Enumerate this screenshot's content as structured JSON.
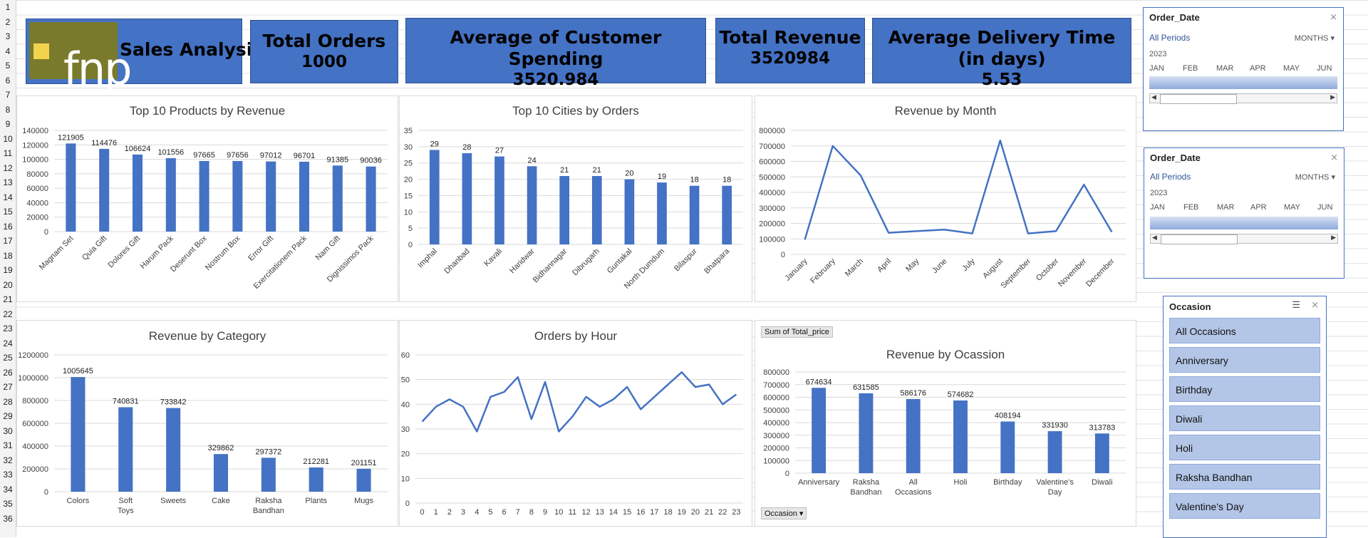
{
  "row_numbers": [
    "1",
    "2",
    "3",
    "4",
    "5",
    "6",
    "7",
    "8",
    "9",
    "10",
    "11",
    "12",
    "13",
    "14",
    "15",
    "16",
    "17",
    "18",
    "19",
    "20",
    "21",
    "22",
    "23",
    "24",
    "25",
    "26",
    "27",
    "28",
    "29",
    "30",
    "31",
    "32",
    "33",
    "34",
    "35",
    "36"
  ],
  "header": {
    "logo_text": "fnp",
    "title": "Sales Analysis",
    "kpis": [
      {
        "label": "Total Orders",
        "value": "1000"
      },
      {
        "label": "Average of Customer Spending",
        "value": "3520.984"
      },
      {
        "label": "Total Revenue",
        "value": "3520984"
      },
      {
        "label": "Average Delivery Time (in days)",
        "value": "5.53"
      }
    ]
  },
  "slicers": {
    "date1": {
      "title": "Order_Date",
      "period": "All Periods",
      "level": "MONTHS",
      "year": "2023",
      "months": [
        "JAN",
        "FEB",
        "MAR",
        "APR",
        "MAY",
        "JUN"
      ]
    },
    "date2": {
      "title": "Order_Date",
      "period": "All Periods",
      "level": "MONTHS",
      "year": "2023",
      "months": [
        "JAN",
        "FEB",
        "MAR",
        "APR",
        "MAY",
        "JUN"
      ]
    },
    "occasion": {
      "title": "Occasion",
      "items": [
        "All Occasions",
        "Anniversary",
        "Birthday",
        "Diwali",
        "Holi",
        "Raksha Bandhan",
        "Valentine's Day"
      ]
    }
  },
  "pivot_labels": {
    "field": "Sum of Total_price",
    "filter": "Occasion"
  },
  "chart_data": [
    {
      "type": "bar",
      "title": "Top 10 Products by Revenue",
      "categories": [
        "Magnam Set",
        "Quia Gift",
        "Dolores Gift",
        "Harum Pack",
        "Deserunt Box",
        "Nostrum Box",
        "Error Gift",
        "Exercitationem Pack",
        "Nam Gift",
        "Dignissimos Pack"
      ],
      "values": [
        121905,
        114476,
        106624,
        101556,
        97665,
        97656,
        97012,
        96701,
        91385,
        90036
      ],
      "yticks": [
        0,
        20000,
        40000,
        60000,
        80000,
        100000,
        120000,
        140000
      ],
      "ylim": [
        0,
        140000
      ],
      "grid": true
    },
    {
      "type": "bar",
      "title": "Top 10 Cities by Orders",
      "categories": [
        "Imphal",
        "Dhanbad",
        "Kavali",
        "Haridwar",
        "Bidhannagar",
        "Dibrugarh",
        "Guntakal",
        "North Dumdum",
        "Bilaspur",
        "Bhatpara"
      ],
      "values": [
        29,
        28,
        27,
        24,
        21,
        21,
        20,
        19,
        18,
        18
      ],
      "yticks": [
        0,
        5,
        10,
        15,
        20,
        25,
        30,
        35
      ],
      "ylim": [
        0,
        35
      ],
      "grid": true
    },
    {
      "type": "line",
      "title": "Revenue by Month",
      "categories": [
        "January",
        "February",
        "March",
        "April",
        "May",
        "June",
        "July",
        "August",
        "September",
        "October",
        "November",
        "December"
      ],
      "values": [
        95000,
        700000,
        510000,
        140000,
        150000,
        160000,
        135000,
        735000,
        135000,
        150000,
        450000,
        145000
      ],
      "yticks": [
        0,
        100000,
        200000,
        300000,
        400000,
        500000,
        600000,
        700000,
        800000
      ],
      "ylim": [
        0,
        800000
      ],
      "grid": true
    },
    {
      "type": "bar",
      "title": "Revenue by Category",
      "categories": [
        "Colors",
        "Soft Toys",
        "Sweets",
        "Cake",
        "Raksha Bandhan",
        "Plants",
        "Mugs"
      ],
      "values": [
        1005645,
        740831,
        733842,
        329862,
        297372,
        212281,
        201151
      ],
      "yticks": [
        0,
        200000,
        400000,
        600000,
        800000,
        1000000,
        1200000
      ],
      "ylim": [
        0,
        1200000
      ],
      "grid": true
    },
    {
      "type": "line",
      "title": "Orders by Hour",
      "categories": [
        "0",
        "1",
        "2",
        "3",
        "4",
        "5",
        "6",
        "7",
        "8",
        "9",
        "10",
        "11",
        "12",
        "13",
        "14",
        "15",
        "16",
        "17",
        "18",
        "19",
        "20",
        "21",
        "22",
        "23"
      ],
      "values": [
        33,
        39,
        42,
        39,
        29,
        43,
        45,
        51,
        34,
        49,
        29,
        35,
        43,
        39,
        42,
        47,
        38,
        43,
        48,
        53,
        47,
        48,
        40,
        44
      ],
      "yticks": [
        0,
        10,
        20,
        30,
        40,
        50,
        60
      ],
      "ylim": [
        0,
        60
      ],
      "grid": true
    },
    {
      "type": "bar",
      "title": "Revenue by Ocassion",
      "categories": [
        "Anniversary",
        "Raksha Bandhan",
        "All Occasions",
        "Holi",
        "Birthday",
        "Valentine's Day",
        "Diwali"
      ],
      "values": [
        674634,
        631585,
        586176,
        574682,
        408194,
        331930,
        313783
      ],
      "yticks": [
        0,
        100000,
        200000,
        300000,
        400000,
        500000,
        600000,
        700000,
        800000
      ],
      "ylim": [
        0,
        800000
      ],
      "grid": true
    }
  ]
}
